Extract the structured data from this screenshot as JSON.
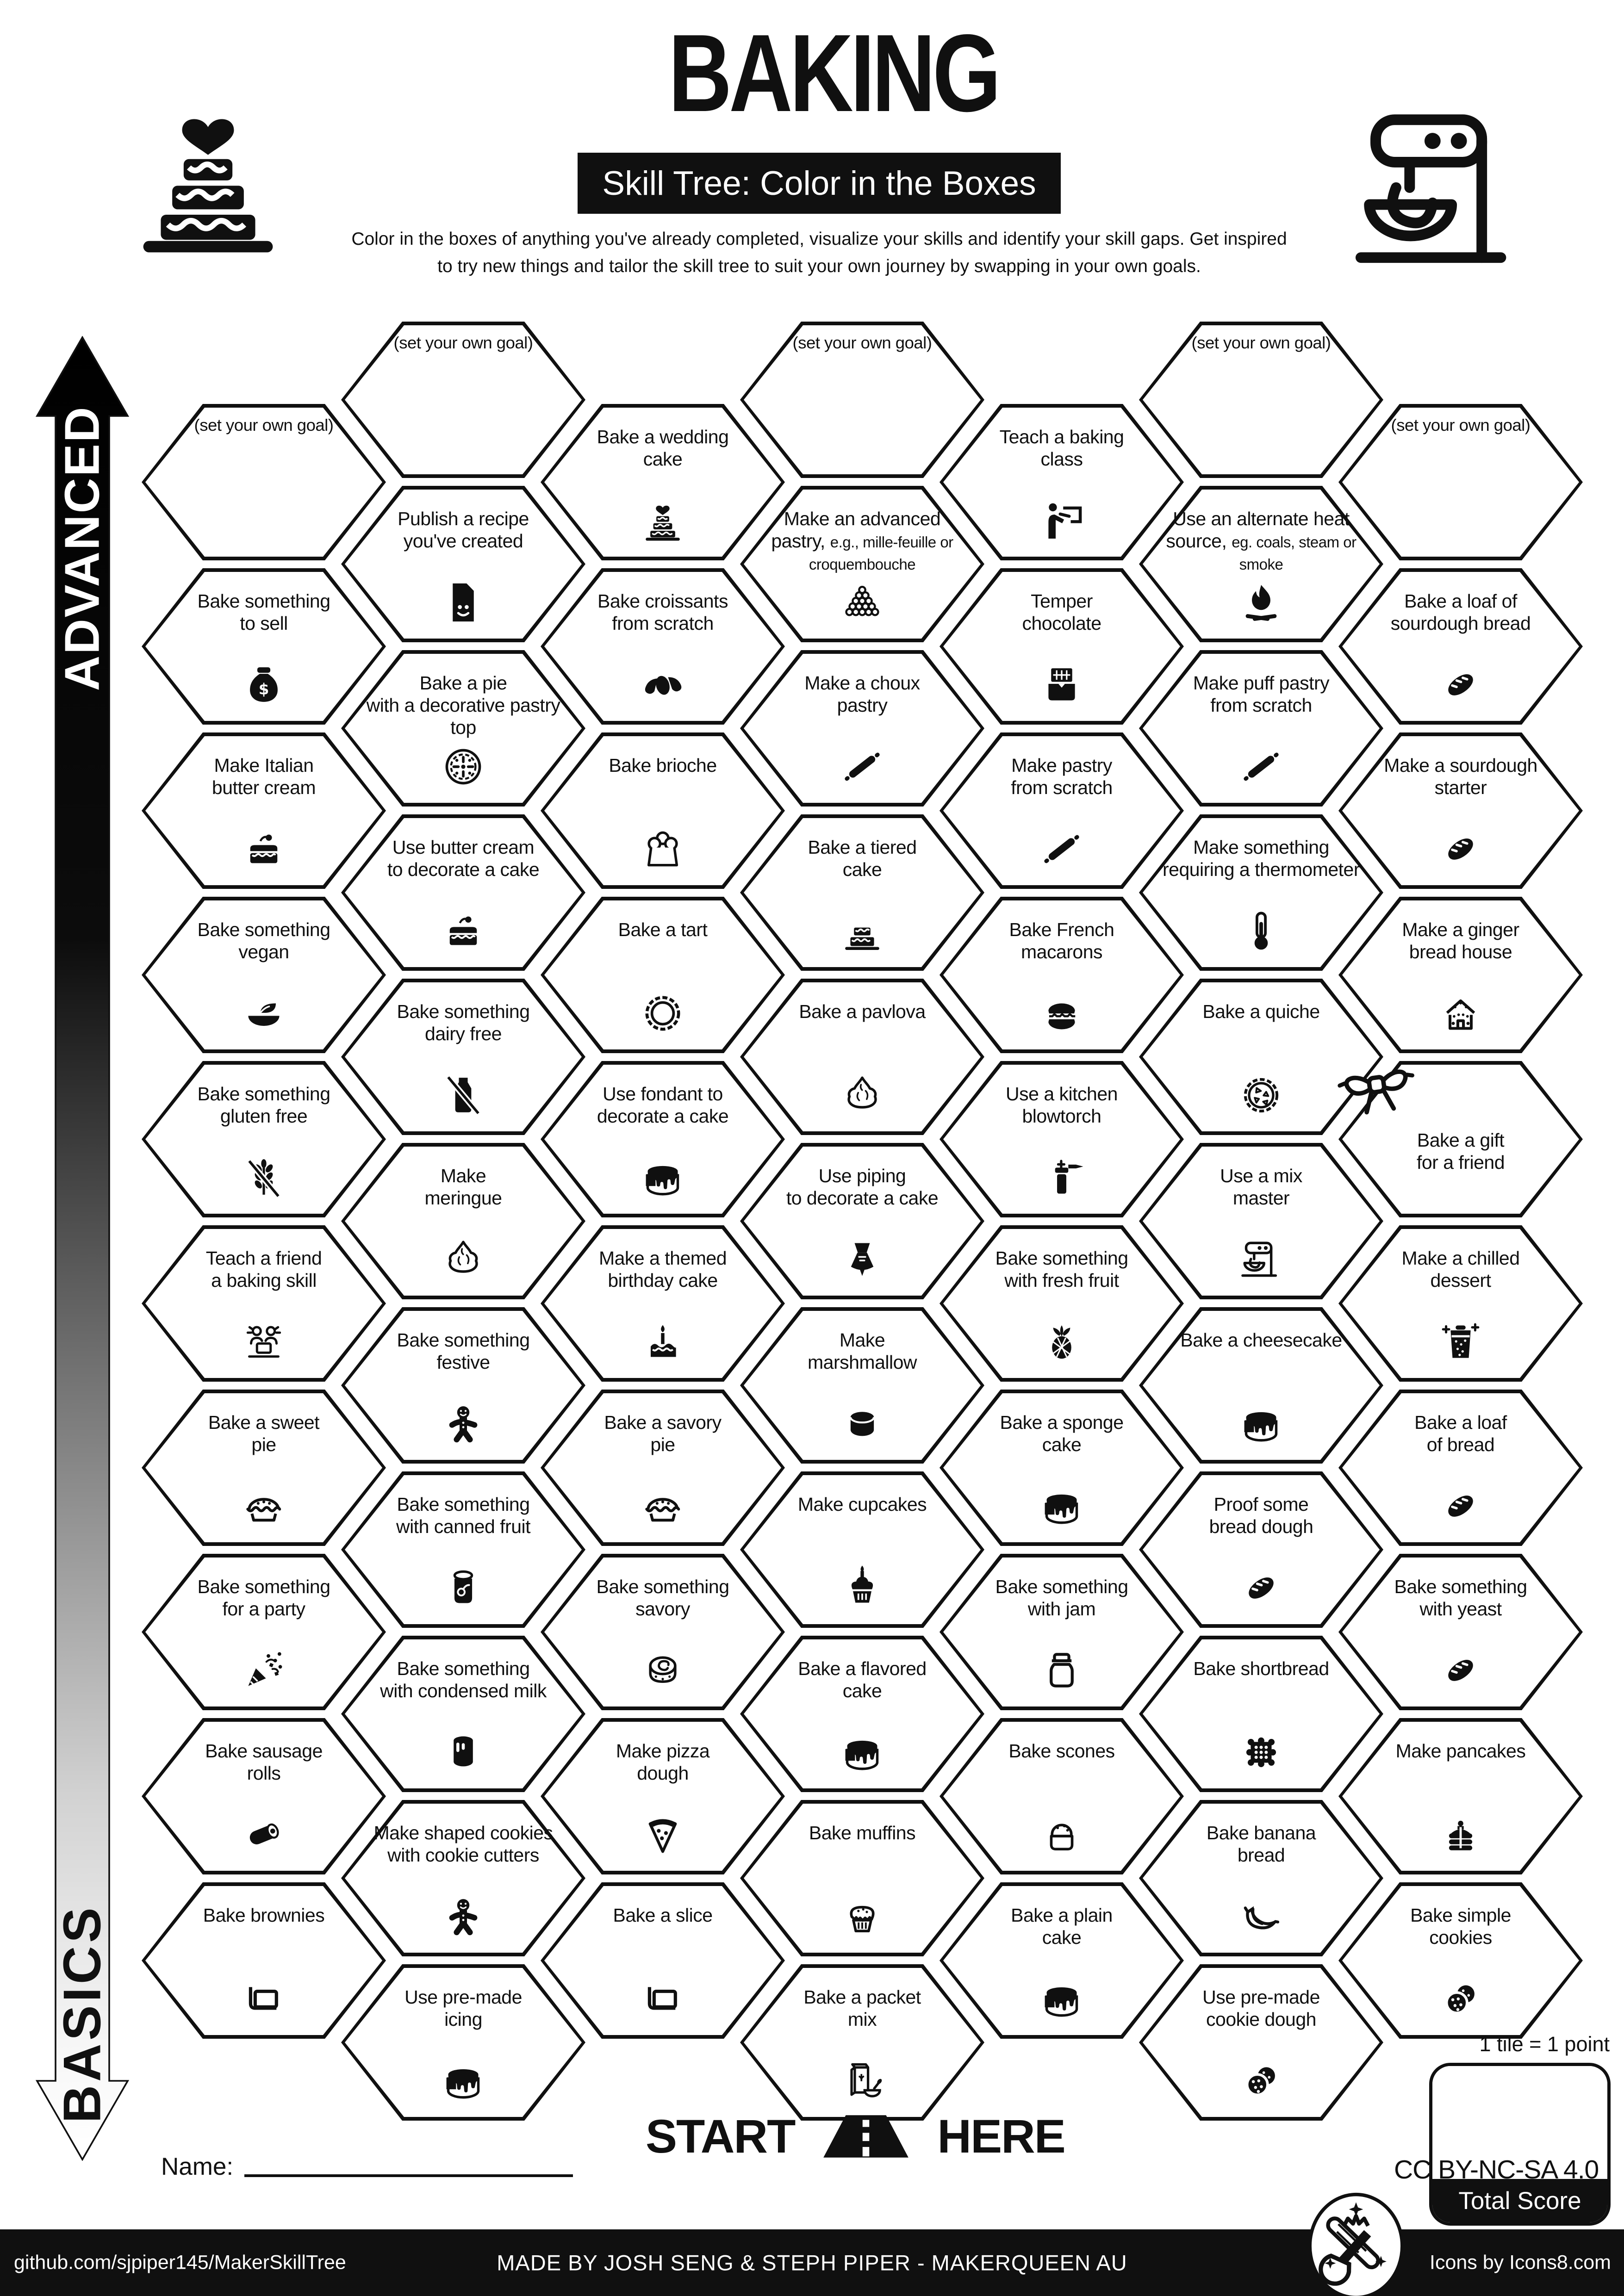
{
  "header": {
    "title": "BAKING",
    "subtitle": "Skill Tree: Color in the Boxes",
    "description": "Color in the boxes of anything you've already completed, visualize your skills and identify your skill gaps.  Get inspired\nto try new things and tailor the skill tree to suit your own journey by swapping in your own goals."
  },
  "arrow": {
    "advanced": "ADVANCED",
    "basics": "BASICS"
  },
  "grid": {
    "columns": [
      {
        "id": "A",
        "tiles": [
          {
            "label": "(set your own goal)",
            "goal": true
          },
          {
            "label": "Bake something\nto sell",
            "icon": "money-bag"
          },
          {
            "label": "Make Italian\nbutter cream",
            "icon": "cream-cake"
          },
          {
            "label": "Bake something\nvegan",
            "icon": "vegan-bowl"
          },
          {
            "label": "Bake something\ngluten free",
            "icon": "gluten-free"
          },
          {
            "label": "Teach a friend\na baking skill",
            "icon": "friends"
          },
          {
            "label": "Bake a sweet\npie",
            "icon": "pie"
          },
          {
            "label": "Bake something\nfor a party",
            "icon": "party-popper"
          },
          {
            "label": "Bake sausage\nrolls",
            "icon": "sausage-roll"
          },
          {
            "label": "Bake brownies",
            "icon": "pan"
          }
        ]
      },
      {
        "id": "B",
        "tiles": [
          {
            "label": "(set your own goal)",
            "goal": true
          },
          {
            "label": "Publish a recipe\nyou've created",
            "icon": "recipe"
          },
          {
            "label": "Bake a pie\nwith a decorative pastry\ntop",
            "icon": "decorated-pie"
          },
          {
            "label": "Use butter cream\nto decorate a cake",
            "icon": "cream-cake"
          },
          {
            "label": "Bake something\ndairy free",
            "icon": "dairy-free"
          },
          {
            "label": "Make\nmeringue",
            "icon": "meringue"
          },
          {
            "label": "Bake something\nfestive",
            "icon": "gingerbread-man"
          },
          {
            "label": "Bake something\nwith canned fruit",
            "icon": "canned-fruit"
          },
          {
            "label": "Bake something\nwith condensed milk",
            "icon": "condensed-milk"
          },
          {
            "label": "Make shaped cookies\nwith cookie cutters",
            "icon": "gingerbread-man"
          },
          {
            "label": "Use pre-made\nicing",
            "icon": "drip-cake"
          }
        ]
      },
      {
        "id": "C",
        "tiles": [
          {
            "label": "Bake a wedding\ncake",
            "icon": "wedding-cake"
          },
          {
            "label": "Bake croissants\nfrom scratch",
            "icon": "croissant"
          },
          {
            "label": "Bake brioche",
            "icon": "brioche"
          },
          {
            "label": "Bake a tart",
            "icon": "tart"
          },
          {
            "label": "Use fondant to\ndecorate a cake",
            "icon": "drip-cake"
          },
          {
            "label": "Make a themed\nbirthday cake",
            "icon": "candle-cake"
          },
          {
            "label": "Bake a savory\npie",
            "icon": "pie"
          },
          {
            "label": "Bake something\nsavory",
            "icon": "swirl-bun"
          },
          {
            "label": "Make pizza\ndough",
            "icon": "pizza"
          },
          {
            "label": "Bake a slice",
            "icon": "pan"
          }
        ]
      },
      {
        "id": "D",
        "tiles": [
          {
            "label": "(set your own goal)",
            "goal": true
          },
          {
            "label": "Make an advanced pastry,",
            "sub": "e.g., mille-feuille or croquembouche",
            "icon": "croquembouche"
          },
          {
            "label": "Make a choux\npastry",
            "icon": "rolling-pin"
          },
          {
            "label": "Bake a tiered\ncake",
            "icon": "tiered-cake"
          },
          {
            "label": "Bake a pavlova",
            "icon": "meringue"
          },
          {
            "label": "Use piping\nto decorate a cake",
            "icon": "piping-bag"
          },
          {
            "label": "Make\nmarshmallow",
            "icon": "marshmallow"
          },
          {
            "label": "Make cupcakes",
            "icon": "cupcake"
          },
          {
            "label": "Bake a flavored\ncake",
            "icon": "drip-cake"
          },
          {
            "label": "Bake muffins",
            "icon": "muffin"
          },
          {
            "label": "Bake a packet\nmix",
            "icon": "packet-mix"
          }
        ]
      },
      {
        "id": "E",
        "tiles": [
          {
            "label": "Teach a baking\nclass",
            "icon": "teach-class"
          },
          {
            "label": "Temper\nchocolate",
            "icon": "chocolate"
          },
          {
            "label": "Make pastry\nfrom scratch",
            "icon": "rolling-pin"
          },
          {
            "label": "Bake French\nmacarons",
            "icon": "macaron"
          },
          {
            "label": "Use a kitchen\nblowtorch",
            "icon": "blowtorch"
          },
          {
            "label": "Bake something\nwith fresh fruit",
            "icon": "pineapple"
          },
          {
            "label": "Bake a sponge\ncake",
            "icon": "drip-cake"
          },
          {
            "label": "Bake something\nwith jam",
            "icon": "jam-jar"
          },
          {
            "label": "Bake scones",
            "icon": "scone"
          },
          {
            "label": "Bake a plain\ncake",
            "icon": "drip-cake"
          }
        ]
      },
      {
        "id": "F",
        "tiles": [
          {
            "label": "(set your own goal)",
            "goal": true
          },
          {
            "label": "Use an alternate heat source,",
            "sub": "eg. coals, steam or smoke",
            "icon": "campfire"
          },
          {
            "label": "Make puff pastry\nfrom scratch",
            "icon": "rolling-pin"
          },
          {
            "label": "Make something\nrequiring a thermometer",
            "icon": "thermometer"
          },
          {
            "label": "Bake a quiche",
            "icon": "quiche"
          },
          {
            "label": "Use a mix\nmaster",
            "icon": "mixer"
          },
          {
            "label": "Bake a cheesecake",
            "icon": "drip-cake"
          },
          {
            "label": "Proof some\nbread dough",
            "icon": "bread"
          },
          {
            "label": "Bake shortbread",
            "icon": "shortbread"
          },
          {
            "label": "Bake banana\nbread",
            "icon": "banana"
          },
          {
            "label": "Use pre-made\ncookie dough",
            "icon": "cookies"
          }
        ]
      },
      {
        "id": "G",
        "tiles": [
          {
            "label": "(set your own goal)",
            "goal": true
          },
          {
            "label": "Bake a loaf of\nsourdough bread",
            "icon": "bread"
          },
          {
            "label": "Make a sourdough\nstarter",
            "icon": "bread"
          },
          {
            "label": "Make a ginger\nbread house",
            "icon": "gingerbread-house"
          },
          {
            "label": "Bake a gift\nfor a friend",
            "bow": true,
            "center": true
          },
          {
            "label": "Make a chilled\ndessert",
            "icon": "chilled"
          },
          {
            "label": "Bake a loaf\nof bread",
            "icon": "bread"
          },
          {
            "label": "Bake something\nwith yeast",
            "icon": "bread"
          },
          {
            "label": "Make pancakes",
            "icon": "pancakes"
          },
          {
            "label": "Bake simple\ncookies",
            "icon": "cookies"
          }
        ]
      }
    ]
  },
  "score": {
    "note": "1 tile = 1 point",
    "label": "Total Score"
  },
  "start": {
    "left": "START",
    "right": "HERE"
  },
  "name": {
    "label": "Name:"
  },
  "footer": {
    "github": "github.com/sjpiper145/MakerSkillTree",
    "credit": "MADE BY JOSH SENG & STEPH PIPER  -  MAKERQUEEN AU",
    "icons": "Icons by Icons8.com",
    "license": "CC BY-NC-SA 4.0"
  }
}
